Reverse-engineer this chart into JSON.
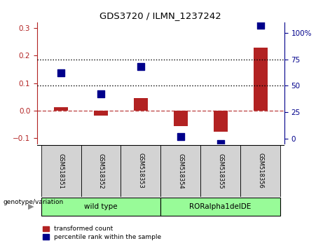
{
  "title": "GDS3720 / ILMN_1237242",
  "categories": [
    "GSM518351",
    "GSM518352",
    "GSM518353",
    "GSM518354",
    "GSM518355",
    "GSM518356"
  ],
  "red_bars": [
    0.012,
    -0.018,
    0.046,
    -0.055,
    -0.075,
    0.228
  ],
  "blue_dots_pct": [
    62,
    42,
    68,
    2,
    -5,
    107
  ],
  "ylim_left": [
    -0.12,
    0.32
  ],
  "ylim_right": [
    -5,
    110
  ],
  "yticks_left": [
    -0.1,
    0.0,
    0.1,
    0.2,
    0.3
  ],
  "yticks_right": [
    0,
    25,
    50,
    75,
    100
  ],
  "ytick_labels_right": [
    "0",
    "25",
    "50",
    "75",
    "100%"
  ],
  "hlines_pct": [
    50,
    75
  ],
  "red_color": "#B22222",
  "blue_color": "#00008B",
  "dashed_zero_color": "#B22222",
  "group1_label": "wild type",
  "group2_label": "RORalpha1delDE",
  "group1_indices": [
    0,
    1,
    2
  ],
  "group2_indices": [
    3,
    4,
    5
  ],
  "group_color": "#98FB98",
  "genotype_label": "genotype/variation",
  "legend_red": "transformed count",
  "legend_blue": "percentile rank within the sample",
  "bar_width": 0.35,
  "dot_size": 45,
  "background_color": "#ffffff",
  "tick_label_bg": "#d3d3d3"
}
